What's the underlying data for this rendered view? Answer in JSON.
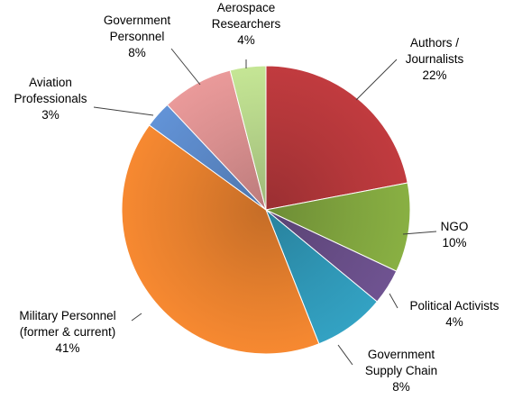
{
  "chart_data": {
    "type": "pie",
    "title": "",
    "slices": [
      {
        "label": [
          "Authors /",
          "Journalists"
        ],
        "percent_label": "22%",
        "value": 22,
        "color": "#b3373a"
      },
      {
        "label": [
          "NGO"
        ],
        "percent_label": "10%",
        "value": 10,
        "color": "#7fa33e"
      },
      {
        "label": [
          "Political Activists"
        ],
        "percent_label": "4%",
        "value": 4,
        "color": "#674d86"
      },
      {
        "label": [
          "Government",
          "Supply Chain"
        ],
        "percent_label": "8%",
        "value": 8,
        "color": "#2f96b5"
      },
      {
        "label": [
          "Military Personnel",
          "(former & current)"
        ],
        "percent_label": "41%",
        "value": 41,
        "color": "#e57f2d"
      },
      {
        "label": [
          "Aviation",
          "Professionals"
        ],
        "percent_label": "3%",
        "value": 3,
        "color": "#5b88c7"
      },
      {
        "label": [
          "Government",
          "Personnel"
        ],
        "percent_label": "8%",
        "value": 8,
        "color": "#d98f8f"
      },
      {
        "label": [
          "Aerospace",
          "Researchers"
        ],
        "percent_label": "4%",
        "value": 4,
        "color": "#b6d58a"
      }
    ],
    "start_angle_deg": 0,
    "direction": "clockwise",
    "legend": "none"
  }
}
